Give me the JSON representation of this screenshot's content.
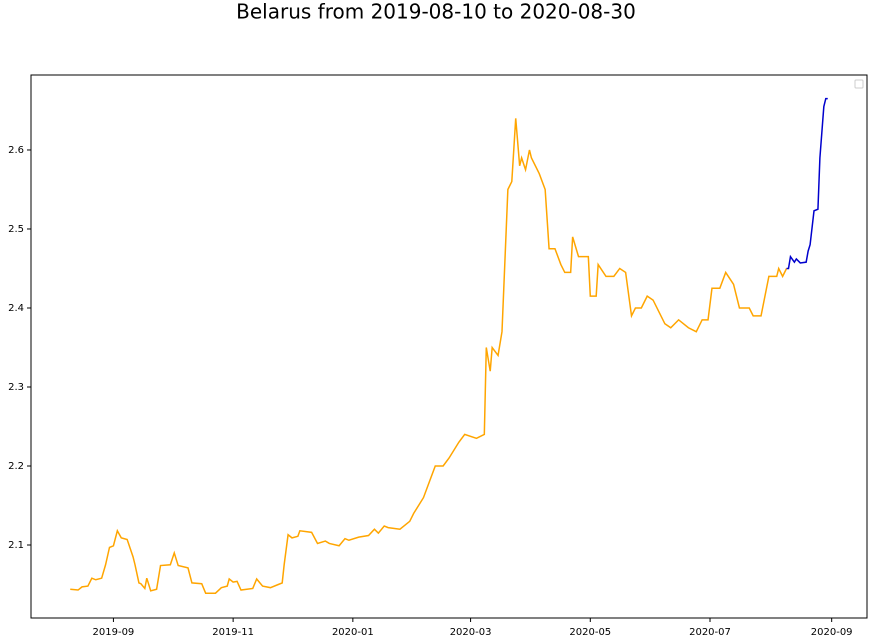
{
  "chart_data": {
    "type": "line",
    "title": "Belarus from 2019-08-10 to 2020-08-30",
    "xlim": [
      "2019-07-21",
      "2020-09-19"
    ],
    "ylim": [
      2.0076,
      2.6949
    ],
    "xticks": [
      {
        "value": "2019-09-01",
        "label": "2019-09"
      },
      {
        "value": "2019-11-01",
        "label": "2019-11"
      },
      {
        "value": "2020-01-01",
        "label": "2020-01"
      },
      {
        "value": "2020-03-01",
        "label": "2020-03"
      },
      {
        "value": "2020-05-01",
        "label": "2020-05"
      },
      {
        "value": "2020-07-01",
        "label": "2020-07"
      },
      {
        "value": "2020-09-01",
        "label": "2020-09"
      }
    ],
    "yticks": [
      2.1,
      2.2,
      2.3,
      2.4,
      2.5,
      2.6
    ],
    "series": [
      {
        "color": "#ffa500",
        "x": [
          "2019-08-10",
          "2019-08-14",
          "2019-08-16",
          "2019-08-19",
          "2019-08-21",
          "2019-08-23",
          "2019-08-26",
          "2019-08-28",
          "2019-08-30",
          "2019-09-01",
          "2019-09-03",
          "2019-09-05",
          "2019-09-08",
          "2019-09-11",
          "2019-09-12",
          "2019-09-14",
          "2019-09-15",
          "2019-09-17",
          "2019-09-18",
          "2019-09-20",
          "2019-09-23",
          "2019-09-25",
          "2019-09-30",
          "2019-10-02",
          "2019-10-04",
          "2019-10-09",
          "2019-10-11",
          "2019-10-16",
          "2019-10-18",
          "2019-10-23",
          "2019-10-26",
          "2019-10-29",
          "2019-10-30",
          "2019-11-01",
          "2019-11-03",
          "2019-11-05",
          "2019-11-11",
          "2019-11-13",
          "2019-11-16",
          "2019-11-20",
          "2019-11-24",
          "2019-11-26",
          "2019-11-27",
          "2019-11-29",
          "2019-12-01",
          "2019-12-04",
          "2019-12-05",
          "2019-12-11",
          "2019-12-14",
          "2019-12-18",
          "2019-12-20",
          "2019-12-25",
          "2019-12-28",
          "2019-12-30",
          "2020-01-04",
          "2020-01-09",
          "2020-01-12",
          "2020-01-14",
          "2020-01-17",
          "2020-01-19",
          "2020-01-25",
          "2020-01-30",
          "2020-02-01",
          "2020-02-06",
          "2020-02-09",
          "2020-02-12",
          "2020-02-16",
          "2020-02-19",
          "2020-02-24",
          "2020-02-27",
          "2020-03-04",
          "2020-03-08",
          "2020-03-09",
          "2020-03-11",
          "2020-03-12",
          "2020-03-15",
          "2020-03-17",
          "2020-03-20",
          "2020-03-22",
          "2020-03-24",
          "2020-03-26",
          "2020-03-27",
          "2020-03-29",
          "2020-03-31",
          "2020-04-01",
          "2020-04-05",
          "2020-04-08",
          "2020-04-10",
          "2020-04-13",
          "2020-04-16",
          "2020-04-18",
          "2020-04-21",
          "2020-04-22",
          "2020-04-25",
          "2020-04-30",
          "2020-05-01",
          "2020-05-04",
          "2020-05-05",
          "2020-05-09",
          "2020-05-13",
          "2020-05-16",
          "2020-05-19",
          "2020-05-22",
          "2020-05-24",
          "2020-05-27",
          "2020-05-30",
          "2020-06-02",
          "2020-06-05",
          "2020-06-08",
          "2020-06-11",
          "2020-06-15",
          "2020-06-20",
          "2020-06-24",
          "2020-06-27",
          "2020-06-30",
          "2020-07-02",
          "2020-07-06",
          "2020-07-09",
          "2020-07-13",
          "2020-07-16",
          "2020-07-21",
          "2020-07-23",
          "2020-07-27",
          "2020-07-29",
          "2020-07-31",
          "2020-08-04",
          "2020-08-05",
          "2020-08-07",
          "2020-08-09"
        ],
        "values": [
          2.044,
          2.043,
          2.047,
          2.048,
          2.058,
          2.056,
          2.058,
          2.075,
          2.097,
          2.099,
          2.118,
          2.109,
          2.107,
          2.085,
          2.075,
          2.052,
          2.051,
          2.045,
          2.058,
          2.042,
          2.044,
          2.074,
          2.075,
          2.09,
          2.074,
          2.071,
          2.052,
          2.051,
          2.039,
          2.039,
          2.046,
          2.048,
          2.057,
          2.053,
          2.054,
          2.043,
          2.045,
          2.057,
          2.048,
          2.046,
          2.05,
          2.052,
          2.075,
          2.113,
          2.109,
          2.111,
          2.118,
          2.116,
          2.102,
          2.105,
          2.102,
          2.099,
          2.108,
          2.106,
          2.11,
          2.112,
          2.12,
          2.115,
          2.124,
          2.122,
          2.12,
          2.13,
          2.14,
          2.16,
          2.18,
          2.2,
          2.2,
          2.21,
          2.23,
          2.24,
          2.235,
          2.24,
          2.35,
          2.32,
          2.35,
          2.34,
          2.37,
          2.55,
          2.56,
          2.64,
          2.58,
          2.59,
          2.575,
          2.6,
          2.59,
          2.57,
          2.55,
          2.475,
          2.475,
          2.455,
          2.445,
          2.445,
          2.49,
          2.465,
          2.465,
          2.415,
          2.415,
          2.455,
          2.44,
          2.44,
          2.45,
          2.445,
          2.39,
          2.4,
          2.4,
          2.415,
          2.41,
          2.395,
          2.38,
          2.375,
          2.385,
          2.375,
          2.37,
          2.385,
          2.385,
          2.425,
          2.425,
          2.445,
          2.43,
          2.4,
          2.4,
          2.39,
          2.39,
          2.415,
          2.44,
          2.44,
          2.45,
          2.44,
          2.45
        ]
      },
      {
        "color": "#0000cd",
        "x": [
          "2020-08-09",
          "2020-08-10",
          "2020-08-11",
          "2020-08-13",
          "2020-08-14",
          "2020-08-16",
          "2020-08-19",
          "2020-08-20",
          "2020-08-21",
          "2020-08-23",
          "2020-08-25",
          "2020-08-26",
          "2020-08-28",
          "2020-08-29",
          "2020-08-30"
        ],
        "values": [
          2.45,
          2.45,
          2.465,
          2.458,
          2.462,
          2.457,
          2.458,
          2.472,
          2.48,
          2.523,
          2.525,
          2.59,
          2.655,
          2.665,
          2.665
        ]
      }
    ]
  }
}
